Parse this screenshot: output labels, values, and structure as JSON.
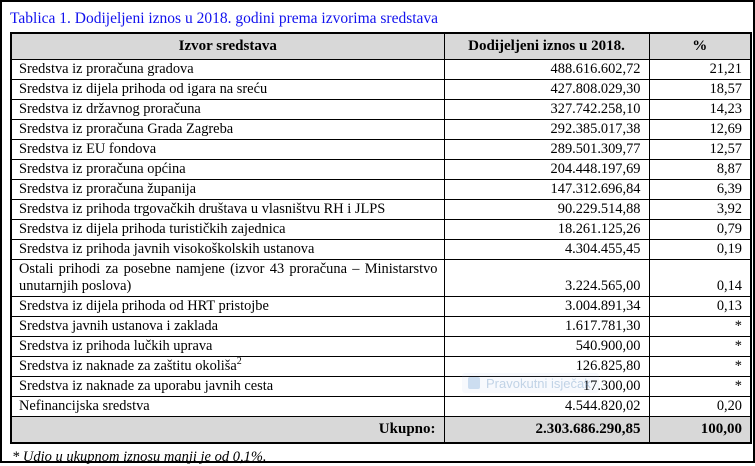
{
  "page": {
    "title": "Tablica 1. Dodijeljeni iznos u 2018. godini prema izvorima sredstava",
    "footnote": "* Udio u ukupnom iznosu manji je od 0,1%.",
    "watermark": {
      "label": "Pravokutni isječak"
    },
    "colors": {
      "title_blue": "#1212ee",
      "header_bg": "#d8d8d8",
      "total_bg": "#d8d8d8",
      "border": "#000000"
    }
  },
  "table": {
    "columns": [
      "Izvor sredstava",
      "Dodijeljeni iznos u 2018.",
      "%"
    ],
    "rows": [
      {
        "source": "Sredstva iz proračuna gradova",
        "amount": "488.616.602,72",
        "pct": "21,21"
      },
      {
        "source": "Sredstva iz dijela prihoda od igara na sreću",
        "amount": "427.808.029,30",
        "pct": "18,57"
      },
      {
        "source": "Sredstva iz državnog proračuna",
        "amount": "327.742.258,10",
        "pct": "14,23"
      },
      {
        "source": "Sredstva iz proračuna Grada Zagreba",
        "amount": "292.385.017,38",
        "pct": "12,69"
      },
      {
        "source": "Sredstva iz EU fondova",
        "amount": "289.501.309,77",
        "pct": "12,57"
      },
      {
        "source": "Sredstva iz proračuna općina",
        "amount": "204.448.197,69",
        "pct": "8,87"
      },
      {
        "source": "Sredstva iz proračuna županija",
        "amount": "147.312.696,84",
        "pct": "6,39"
      },
      {
        "source": "Sredstva iz prihoda trgovačkih društava u vlasništvu RH i JLPS",
        "amount": "90.229.514,88",
        "pct": "3,92"
      },
      {
        "source": "Sredstva iz dijela prihoda turističkih zajednica",
        "amount": "18.261.125,26",
        "pct": "0,79"
      },
      {
        "source": "Sredstva iz prihoda javnih visokoškolskih ustanova",
        "amount": "4.304.455,45",
        "pct": "0,19"
      },
      {
        "source": "Ostali prihodi za posebne namjene (izvor 43 proračuna – Ministarstvo unutarnjih poslova)",
        "amount": "3.224.565,00",
        "pct": "0,14",
        "justify": true
      },
      {
        "source": "Sredstva iz dijela prihoda od HRT pristojbe",
        "amount": "3.004.891,34",
        "pct": "0,13"
      },
      {
        "source": "Sredstva javnih ustanova i zaklada",
        "amount": "1.617.781,30",
        "pct": "*"
      },
      {
        "source": "Sredstva iz prihoda lučkih uprava",
        "amount": "540.900,00",
        "pct": "*"
      },
      {
        "source": "Sredstva iz naknade za zaštitu okoliša",
        "sup": "2",
        "amount": "126.825,80",
        "pct": "*"
      },
      {
        "source": "Sredstva iz naknade za uporabu javnih cesta",
        "amount": "17.300,00",
        "pct": "*"
      },
      {
        "source": "Nefinancijska sredstva",
        "amount": "4.544.820,02",
        "pct": "0,20"
      }
    ],
    "total": {
      "label": "Ukupno:",
      "amount": "2.303.686.290,85",
      "pct": "100,00"
    }
  }
}
